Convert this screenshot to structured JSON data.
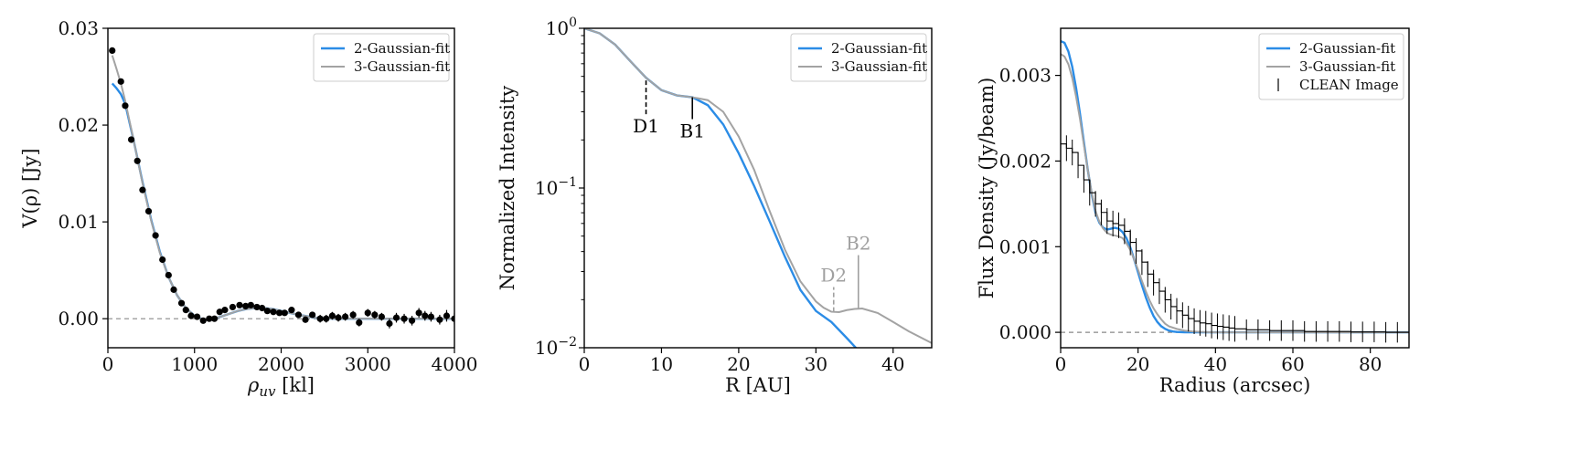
{
  "colors": {
    "fit2": "#2b8ce6",
    "fit3": "#a3a3a3",
    "data": "#000000",
    "zero": "#888888",
    "annot_gray": "#a0a0a0"
  },
  "chart_data": [
    {
      "type": "scatter",
      "xlabel": "ρ_uv [kl]",
      "ylabel": "V(ρ) [Jy]",
      "xlim": [
        0,
        4000
      ],
      "ylim": [
        -0.003,
        0.03
      ],
      "xticks": [
        0,
        1000,
        2000,
        3000,
        4000
      ],
      "yticks": [
        0.0,
        0.01,
        0.02,
        0.03
      ],
      "xtick_labels": [
        "0",
        "1000",
        "2000",
        "3000",
        "4000"
      ],
      "ytick_labels": [
        "0.00",
        "0.01",
        "0.02",
        "0.03"
      ],
      "legend": {
        "placement": "top-right",
        "entries": [
          "2-Gaussian-fit",
          "3-Gaussian-fit"
        ]
      },
      "zero_line": true,
      "points": {
        "x": [
          50,
          150,
          200,
          270,
          340,
          400,
          470,
          550,
          630,
          700,
          760,
          850,
          900,
          960,
          1030,
          1100,
          1170,
          1230,
          1290,
          1350,
          1440,
          1520,
          1590,
          1650,
          1720,
          1780,
          1840,
          1910,
          1980,
          2040,
          2120,
          2200,
          2280,
          2360,
          2450,
          2520,
          2590,
          2660,
          2740,
          2830,
          2900,
          3000,
          3080,
          3160,
          3250,
          3330,
          3420,
          3510,
          3590,
          3660,
          3730,
          3830,
          3910,
          4000
        ],
        "y": [
          0.0277,
          0.0245,
          0.022,
          0.0185,
          0.0163,
          0.0133,
          0.0111,
          0.0086,
          0.0061,
          0.0045,
          0.003,
          0.0016,
          0.0009,
          0.0003,
          0.0002,
          -0.0002,
          0.0,
          0.0,
          0.0007,
          0.0009,
          0.0012,
          0.0014,
          0.0013,
          0.0014,
          0.0012,
          0.0011,
          0.0008,
          0.0007,
          0.0006,
          0.0006,
          0.0009,
          0.0004,
          -0.0001,
          0.0004,
          0.0,
          0.0,
          0.0003,
          0.0001,
          0.0002,
          0.0004,
          -0.0004,
          0.0006,
          0.0004,
          0.0002,
          -0.0005,
          0.0001,
          0.0,
          -0.0002,
          0.0006,
          0.0003,
          0.0002,
          -0.0001,
          0.0003,
          0.0
        ],
        "err": [
          0.0003,
          0.0003,
          0.0003,
          0.0003,
          0.0003,
          0.0003,
          0.0003,
          0.0003,
          0.0003,
          0.0003,
          0.0003,
          0.0003,
          0.0003,
          0.0003,
          0.0003,
          0.0003,
          0.0003,
          0.0003,
          0.0003,
          0.0003,
          0.0003,
          0.0003,
          0.0003,
          0.0003,
          0.0003,
          0.0003,
          0.0003,
          0.0003,
          0.0003,
          0.0003,
          0.0003,
          0.0003,
          0.0003,
          0.0003,
          0.0004,
          0.0004,
          0.0004,
          0.0004,
          0.0004,
          0.0004,
          0.0004,
          0.0004,
          0.0004,
          0.0004,
          0.0005,
          0.0005,
          0.0005,
          0.0005,
          0.0005,
          0.0005,
          0.0005,
          0.0005,
          0.0006,
          0.0006
        ]
      },
      "series": [
        {
          "name": "2-Gaussian-fit",
          "x": [
            50,
            100,
            150,
            200,
            300,
            400,
            500,
            600,
            700,
            800,
            900,
            1000,
            1100,
            1200,
            1300,
            1400,
            1500,
            1600,
            1700,
            1800,
            1900,
            2000,
            2100,
            2200,
            2400,
            2600,
            2800,
            3000,
            3500,
            4000
          ],
          "y": [
            0.0243,
            0.0238,
            0.0232,
            0.0222,
            0.0183,
            0.0141,
            0.0102,
            0.0069,
            0.0043,
            0.0024,
            0.0011,
            0.0003,
            -0.0001,
            -0.0001,
            0.0002,
            0.0005,
            0.0008,
            0.001,
            0.0011,
            0.0011,
            0.001,
            0.0008,
            0.0006,
            0.0004,
            0.0001,
            0.0,
            0.0,
            0.0,
            0.0,
            0.0
          ]
        },
        {
          "name": "3-Gaussian-fit",
          "x": [
            50,
            100,
            150,
            200,
            300,
            400,
            500,
            600,
            700,
            800,
            900,
            1000,
            1100,
            1200,
            1300,
            1400,
            1500,
            1600,
            1700,
            1800,
            1900,
            2000,
            2100,
            2200,
            2400,
            2600,
            2800,
            3000,
            3500,
            4000
          ],
          "y": [
            0.0272,
            0.0258,
            0.0243,
            0.0225,
            0.0183,
            0.014,
            0.0101,
            0.0068,
            0.0043,
            0.0024,
            0.0011,
            0.0003,
            -0.0001,
            -0.0001,
            0.0002,
            0.0005,
            0.0008,
            0.001,
            0.0011,
            0.0011,
            0.001,
            0.0008,
            0.0006,
            0.0004,
            0.0001,
            0.0,
            0.0,
            0.0,
            0.0,
            0.0
          ]
        }
      ]
    },
    {
      "type": "line",
      "xlabel": "R [AU]",
      "ylabel": "Normalized Intensity",
      "yscale": "log",
      "xlim": [
        0,
        45
      ],
      "ylim": [
        0.01,
        1
      ],
      "xticks": [
        0,
        10,
        20,
        30,
        40
      ],
      "xtick_labels": [
        "0",
        "10",
        "20",
        "30",
        "40"
      ],
      "yticks": [
        1,
        0.1,
        0.01
      ],
      "ytick_labels": [
        {
          "base": "10",
          "exp": "0"
        },
        {
          "base": "10",
          "exp": "−1"
        },
        {
          "base": "10",
          "exp": "−2"
        }
      ],
      "legend": {
        "placement": "top-right",
        "entries": [
          "2-Gaussian-fit",
          "3-Gaussian-fit"
        ]
      },
      "series": [
        {
          "name": "2-Gaussian-fit",
          "x": [
            0,
            2,
            4,
            6,
            8,
            10,
            12,
            14,
            16,
            18,
            20,
            22,
            24,
            26,
            28,
            30,
            32,
            34,
            35.5
          ],
          "y": [
            1.0,
            0.93,
            0.79,
            0.62,
            0.49,
            0.41,
            0.38,
            0.37,
            0.33,
            0.25,
            0.165,
            0.103,
            0.062,
            0.037,
            0.023,
            0.017,
            0.0145,
            0.0115,
            0.0096
          ]
        },
        {
          "name": "3-Gaussian-fit",
          "x": [
            0,
            2,
            4,
            6,
            8,
            10,
            12,
            14,
            16,
            18,
            20,
            22,
            24,
            26,
            28,
            30,
            31,
            32,
            33,
            34,
            35,
            36,
            38,
            40,
            42,
            45
          ],
          "y": [
            1.0,
            0.93,
            0.79,
            0.62,
            0.49,
            0.41,
            0.38,
            0.37,
            0.355,
            0.3,
            0.21,
            0.13,
            0.072,
            0.041,
            0.026,
            0.0195,
            0.0178,
            0.0168,
            0.0167,
            0.0172,
            0.0175,
            0.0176,
            0.0165,
            0.0145,
            0.0127,
            0.0107
          ]
        }
      ],
      "annotations": [
        {
          "label": "D1",
          "x": 8,
          "y_from": 0.29,
          "y_to": 0.48,
          "style": "dashed",
          "color": "black"
        },
        {
          "label": "B1",
          "x": 14,
          "y_from": 0.27,
          "y_to": 0.37,
          "style": "solid",
          "color": "black"
        },
        {
          "label": "D2",
          "x": 32.3,
          "y_from": 0.0168,
          "y_to": 0.024,
          "style": "dashed",
          "color": "gray"
        },
        {
          "label": "B2",
          "x": 35.5,
          "y_from": 0.0176,
          "y_to": 0.038,
          "style": "solid",
          "color": "gray"
        }
      ]
    },
    {
      "type": "line",
      "xlabel": "Radius (arcsec)",
      "ylabel": "Flux Density (Jy/beam)",
      "xlim": [
        0,
        90
      ],
      "ylim": [
        -0.00018,
        0.00355
      ],
      "xticks": [
        0,
        20,
        40,
        60,
        80
      ],
      "xtick_labels": [
        "0",
        "20",
        "40",
        "60",
        "80"
      ],
      "yticks": [
        0.0,
        0.001,
        0.002,
        0.003
      ],
      "ytick_labels": [
        "0.000",
        "0.001",
        "0.002",
        "0.003"
      ],
      "legend": {
        "placement": "top-right",
        "entries": [
          "2-Gaussian-fit",
          "3-Gaussian-fit",
          "CLEAN Image"
        ]
      },
      "zero_line": true,
      "series": [
        {
          "name": "2-Gaussian-fit",
          "x": [
            0,
            1,
            2,
            3,
            4,
            5,
            6,
            7,
            8,
            9,
            10,
            11,
            12,
            13,
            14,
            15,
            16,
            17,
            18,
            19,
            20,
            21,
            22,
            23,
            24,
            25,
            26,
            27,
            28,
            29,
            30,
            32,
            34,
            36,
            40,
            50,
            60,
            70,
            80,
            90
          ],
          "y": [
            0.0034,
            0.00338,
            0.00328,
            0.0031,
            0.00285,
            0.00255,
            0.00222,
            0.0019,
            0.00162,
            0.0014,
            0.00128,
            0.00122,
            0.0012,
            0.00121,
            0.00122,
            0.00121,
            0.00117,
            0.0011,
            0.00099,
            0.00085,
            0.0007,
            0.00055,
            0.00041,
            0.00029,
            0.00019,
            0.00012,
            7e-05,
            4e-05,
            2e-05,
            1e-05,
            5e-06,
            0.0,
            0.0,
            0.0,
            0.0,
            0.0,
            0.0,
            0.0,
            0.0,
            0.0
          ]
        },
        {
          "name": "3-Gaussian-fit",
          "x": [
            0,
            1,
            2,
            3,
            4,
            5,
            6,
            7,
            8,
            9,
            10,
            11,
            12,
            13,
            14,
            15,
            16,
            17,
            18,
            19,
            20,
            21,
            22,
            23,
            24,
            25,
            26,
            27,
            28,
            30,
            32,
            34,
            36,
            40,
            50,
            60,
            70,
            80,
            90
          ],
          "y": [
            0.00325,
            0.00322,
            0.00313,
            0.00297,
            0.00275,
            0.00249,
            0.00219,
            0.0019,
            0.00163,
            0.00142,
            0.00129,
            0.00121,
            0.00116,
            0.00114,
            0.00113,
            0.00112,
            0.0011,
            0.00104,
            0.00096,
            0.00085,
            0.00073,
            0.0006,
            0.00048,
            0.00037,
            0.00028,
            0.00021,
            0.00015,
            0.0001,
            7e-05,
            4e-05,
            2e-05,
            1e-05,
            5e-06,
            0.0,
            0.0,
            0.0,
            0.0,
            0.0,
            0.0
          ]
        }
      ],
      "clean_image": {
        "name": "CLEAN Image",
        "x": [
          0,
          1.5,
          3,
          4.5,
          6,
          7.5,
          9,
          10.5,
          12,
          13.5,
          15,
          16.5,
          18,
          19.5,
          21,
          22.5,
          24,
          25.5,
          27,
          28.5,
          30,
          31.5,
          33,
          34.5,
          36,
          37.5,
          39,
          40.5,
          42,
          43.5,
          45,
          48,
          51,
          54,
          57,
          60,
          63,
          66,
          69,
          72,
          75,
          78,
          81,
          84,
          87,
          90
        ],
        "y": [
          0.0022,
          0.00215,
          0.0021,
          0.00195,
          0.00178,
          0.00163,
          0.0015,
          0.0014,
          0.0013,
          0.00127,
          0.00125,
          0.00118,
          0.00105,
          0.00095,
          0.00082,
          0.00068,
          0.00058,
          0.00048,
          0.00038,
          0.0003,
          0.00025,
          0.0002,
          0.00016,
          0.00013,
          0.00011,
          0.0001,
          8e-05,
          7e-05,
          6e-05,
          5e-05,
          4e-05,
          3e-05,
          3e-05,
          2e-05,
          2e-05,
          2e-05,
          1e-05,
          1e-05,
          1e-05,
          1e-05,
          5e-06,
          5e-06,
          5e-06,
          0.0,
          0.0,
          0.0
        ],
        "err": [
          0.00015,
          0.00015,
          0.00015,
          0.00015,
          0.00015,
          0.00015,
          0.00015,
          0.00015,
          0.00015,
          0.00015,
          0.00015,
          0.00015,
          0.00015,
          0.00015,
          0.00015,
          0.00015,
          0.00015,
          0.00015,
          0.00015,
          0.00015,
          0.00015,
          0.00015,
          0.00015,
          0.00015,
          0.00015,
          0.00015,
          0.00015,
          0.00015,
          0.00015,
          0.00015,
          0.00015,
          0.00012,
          0.00012,
          0.00012,
          0.00012,
          0.00012,
          0.00012,
          0.00012,
          0.00012,
          0.00012,
          0.00012,
          0.00012,
          0.00012,
          0.00012,
          0.00012,
          0.00012
        ]
      }
    }
  ]
}
